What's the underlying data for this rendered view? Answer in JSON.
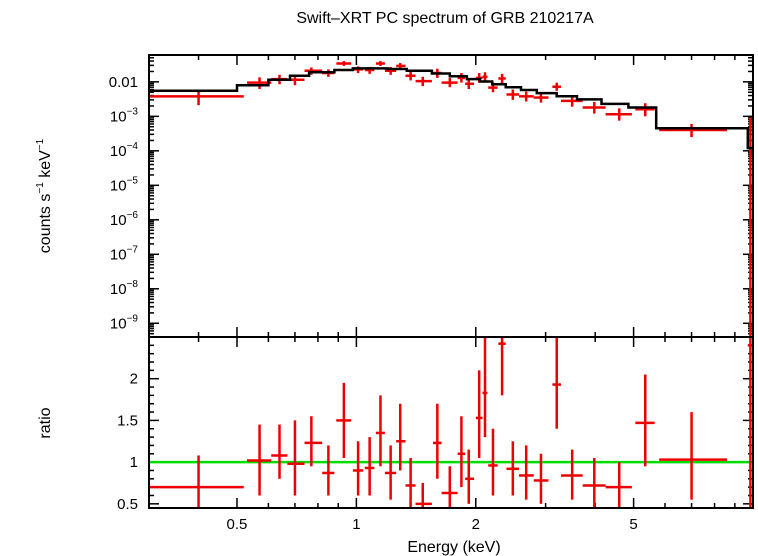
{
  "chart_data": {
    "type": "scatter",
    "title": "Swift–XRT PC spectrum of GRB 210217A",
    "xlabel": "Energy (keV)",
    "x_scale": "log",
    "xlim": [
      0.3,
      10
    ],
    "x_ticks": [
      {
        "value": 0.5,
        "label": "0.5"
      },
      {
        "value": 1,
        "label": "1"
      },
      {
        "value": 2,
        "label": "2"
      },
      {
        "value": 5,
        "label": "5"
      }
    ],
    "grid": false,
    "legend": "none",
    "colors": {
      "data": "#ee0000",
      "model": "#000000",
      "unity": "#00dd00"
    },
    "panels": {
      "spectrum": {
        "ylabel_main": "counts s",
        "ylabel_sup1": "−1",
        "ylabel_mid": " keV",
        "ylabel_sup2": "−1",
        "y_scale": "log",
        "ylim": [
          4e-10,
          0.06
        ],
        "y_ticks": [
          {
            "value": 0.01,
            "label": "0.01"
          },
          {
            "value": 0.001,
            "base": "10",
            "exp": "−3"
          },
          {
            "value": 0.0001,
            "base": "10",
            "exp": "−4"
          },
          {
            "value": 1e-05,
            "base": "10",
            "exp": "−5"
          },
          {
            "value": 1e-06,
            "base": "10",
            "exp": "−6"
          },
          {
            "value": 1e-07,
            "base": "10",
            "exp": "−7"
          },
          {
            "value": 1e-08,
            "base": "10",
            "exp": "−8"
          },
          {
            "value": 1e-09,
            "base": "10",
            "exp": "−9"
          }
        ],
        "data": [
          {
            "x": 0.4,
            "xlo": 0.3,
            "xhi": 0.52,
            "y": 0.0038,
            "ylo": 0.0021,
            "yhi": 0.0055
          },
          {
            "x": 0.57,
            "xlo": 0.53,
            "xhi": 0.61,
            "y": 0.0095,
            "ylo": 0.0062,
            "yhi": 0.0135
          },
          {
            "x": 0.64,
            "xlo": 0.61,
            "xhi": 0.67,
            "y": 0.012,
            "ylo": 0.0085,
            "yhi": 0.016
          },
          {
            "x": 0.7,
            "xlo": 0.67,
            "xhi": 0.74,
            "y": 0.0115,
            "ylo": 0.008,
            "yhi": 0.0155
          },
          {
            "x": 0.77,
            "xlo": 0.74,
            "xhi": 0.82,
            "y": 0.021,
            "ylo": 0.016,
            "yhi": 0.026
          },
          {
            "x": 0.85,
            "xlo": 0.82,
            "xhi": 0.88,
            "y": 0.018,
            "ylo": 0.014,
            "yhi": 0.023
          },
          {
            "x": 0.93,
            "xlo": 0.89,
            "xhi": 0.97,
            "y": 0.034,
            "ylo": 0.029,
            "yhi": 0.04
          },
          {
            "x": 1.01,
            "xlo": 0.98,
            "xhi": 1.04,
            "y": 0.023,
            "ylo": 0.018,
            "yhi": 0.028
          },
          {
            "x": 1.08,
            "xlo": 1.05,
            "xhi": 1.11,
            "y": 0.022,
            "ylo": 0.017,
            "yhi": 0.027
          },
          {
            "x": 1.15,
            "xlo": 1.12,
            "xhi": 1.18,
            "y": 0.034,
            "ylo": 0.029,
            "yhi": 0.04
          },
          {
            "x": 1.22,
            "xlo": 1.18,
            "xhi": 1.26,
            "y": 0.021,
            "ylo": 0.016,
            "yhi": 0.027
          },
          {
            "x": 1.29,
            "xlo": 1.26,
            "xhi": 1.33,
            "y": 0.029,
            "ylo": 0.024,
            "yhi": 0.035
          },
          {
            "x": 1.37,
            "xlo": 1.33,
            "xhi": 1.41,
            "y": 0.015,
            "ylo": 0.011,
            "yhi": 0.02
          },
          {
            "x": 1.47,
            "xlo": 1.41,
            "xhi": 1.55,
            "y": 0.0105,
            "ylo": 0.0075,
            "yhi": 0.014
          },
          {
            "x": 1.6,
            "xlo": 1.56,
            "xhi": 1.64,
            "y": 0.018,
            "ylo": 0.013,
            "yhi": 0.024
          },
          {
            "x": 1.72,
            "xlo": 1.64,
            "xhi": 1.8,
            "y": 0.0095,
            "ylo": 0.007,
            "yhi": 0.013
          },
          {
            "x": 1.84,
            "xlo": 1.8,
            "xhi": 1.88,
            "y": 0.013,
            "ylo": 0.0095,
            "yhi": 0.018
          },
          {
            "x": 1.92,
            "xlo": 1.88,
            "xhi": 1.98,
            "y": 0.0088,
            "ylo": 0.0062,
            "yhi": 0.012
          },
          {
            "x": 2.04,
            "xlo": 2.0,
            "xhi": 2.08,
            "y": 0.013,
            "ylo": 0.0095,
            "yhi": 0.018
          },
          {
            "x": 2.11,
            "xlo": 2.08,
            "xhi": 2.14,
            "y": 0.014,
            "ylo": 0.01,
            "yhi": 0.019
          },
          {
            "x": 2.21,
            "xlo": 2.15,
            "xhi": 2.27,
            "y": 0.0068,
            "ylo": 0.005,
            "yhi": 0.0095
          },
          {
            "x": 2.33,
            "xlo": 2.28,
            "xhi": 2.38,
            "y": 0.0125,
            "ylo": 0.009,
            "yhi": 0.017
          },
          {
            "x": 2.48,
            "xlo": 2.39,
            "xhi": 2.57,
            "y": 0.0043,
            "ylo": 0.003,
            "yhi": 0.006
          },
          {
            "x": 2.68,
            "xlo": 2.57,
            "xhi": 2.8,
            "y": 0.0038,
            "ylo": 0.0027,
            "yhi": 0.0052
          },
          {
            "x": 2.92,
            "xlo": 2.8,
            "xhi": 3.05,
            "y": 0.0035,
            "ylo": 0.0025,
            "yhi": 0.0048
          },
          {
            "x": 3.2,
            "xlo": 3.12,
            "xhi": 3.28,
            "y": 0.0072,
            "ylo": 0.0055,
            "yhi": 0.0095
          },
          {
            "x": 3.5,
            "xlo": 3.28,
            "xhi": 3.72,
            "y": 0.0028,
            "ylo": 0.0019,
            "yhi": 0.0039
          },
          {
            "x": 3.98,
            "xlo": 3.72,
            "xhi": 4.25,
            "y": 0.0018,
            "ylo": 0.0012,
            "yhi": 0.0026
          },
          {
            "x": 4.6,
            "xlo": 4.25,
            "xhi": 4.95,
            "y": 0.00115,
            "ylo": 0.00075,
            "yhi": 0.0017
          },
          {
            "x": 5.35,
            "xlo": 5.05,
            "xhi": 5.65,
            "y": 0.0016,
            "ylo": 0.001,
            "yhi": 0.0024
          },
          {
            "x": 7.0,
            "xlo": 5.8,
            "xhi": 8.6,
            "y": 0.0004,
            "ylo": 0.00025,
            "yhi": 0.0006
          },
          {
            "x": 9.85,
            "xlo": 9.7,
            "xhi": 10.0,
            "y": 0.0004,
            "ylo": 4e-10,
            "yhi": 0.0009
          }
        ],
        "model": [
          [
            0.3,
            0.0055
          ],
          [
            0.5,
            0.0055
          ],
          [
            0.5,
            0.008
          ],
          [
            0.6,
            0.008
          ],
          [
            0.6,
            0.0115
          ],
          [
            0.68,
            0.0115
          ],
          [
            0.68,
            0.015
          ],
          [
            0.76,
            0.015
          ],
          [
            0.76,
            0.019
          ],
          [
            0.88,
            0.019
          ],
          [
            0.88,
            0.022
          ],
          [
            0.98,
            0.022
          ],
          [
            0.98,
            0.0245
          ],
          [
            1.2,
            0.0245
          ],
          [
            1.2,
            0.0235
          ],
          [
            1.34,
            0.0235
          ],
          [
            1.34,
            0.021
          ],
          [
            1.55,
            0.021
          ],
          [
            1.55,
            0.0175
          ],
          [
            1.72,
            0.0175
          ],
          [
            1.72,
            0.0145
          ],
          [
            1.9,
            0.0145
          ],
          [
            1.9,
            0.012
          ],
          [
            2.05,
            0.012
          ],
          [
            2.05,
            0.0102
          ],
          [
            2.2,
            0.0102
          ],
          [
            2.2,
            0.0085
          ],
          [
            2.38,
            0.0085
          ],
          [
            2.38,
            0.007
          ],
          [
            2.6,
            0.007
          ],
          [
            2.6,
            0.0058
          ],
          [
            2.85,
            0.0058
          ],
          [
            2.85,
            0.0047
          ],
          [
            3.2,
            0.0047
          ],
          [
            3.2,
            0.0038
          ],
          [
            3.6,
            0.0038
          ],
          [
            3.6,
            0.0031
          ],
          [
            4.15,
            0.0031
          ],
          [
            4.15,
            0.0023
          ],
          [
            4.85,
            0.0023
          ],
          [
            4.85,
            0.0018
          ],
          [
            5.7,
            0.0018
          ],
          [
            5.7,
            0.00045
          ],
          [
            9.7,
            0.00045
          ],
          [
            9.7,
            0.00012
          ],
          [
            10.0,
            0.00012
          ]
        ]
      },
      "ratio": {
        "ylabel": "ratio",
        "y_scale": "linear",
        "ylim": [
          0.45,
          2.5
        ],
        "y_ticks": [
          {
            "value": 0.5,
            "label": "0.5"
          },
          {
            "value": 1,
            "label": "1"
          },
          {
            "value": 1.5,
            "label": "1.5"
          },
          {
            "value": 2,
            "label": "2"
          }
        ],
        "unity_line": 1,
        "data": [
          {
            "x": 0.4,
            "xlo": 0.3,
            "xhi": 0.52,
            "y": 0.7,
            "ylo": 0.45,
            "yhi": 1.08
          },
          {
            "x": 0.57,
            "xlo": 0.53,
            "xhi": 0.61,
            "y": 1.02,
            "ylo": 0.6,
            "yhi": 1.45
          },
          {
            "x": 0.64,
            "xlo": 0.61,
            "xhi": 0.67,
            "y": 1.08,
            "ylo": 0.8,
            "yhi": 1.45
          },
          {
            "x": 0.7,
            "xlo": 0.67,
            "xhi": 0.74,
            "y": 0.98,
            "ylo": 0.6,
            "yhi": 1.5
          },
          {
            "x": 0.77,
            "xlo": 0.74,
            "xhi": 0.82,
            "y": 1.23,
            "ylo": 0.95,
            "yhi": 1.55
          },
          {
            "x": 0.85,
            "xlo": 0.82,
            "xhi": 0.88,
            "y": 0.87,
            "ylo": 0.6,
            "yhi": 1.2
          },
          {
            "x": 0.93,
            "xlo": 0.89,
            "xhi": 0.97,
            "y": 1.5,
            "ylo": 1.05,
            "yhi": 1.95
          },
          {
            "x": 1.01,
            "xlo": 0.98,
            "xhi": 1.04,
            "y": 0.9,
            "ylo": 0.6,
            "yhi": 1.25
          },
          {
            "x": 1.08,
            "xlo": 1.05,
            "xhi": 1.11,
            "y": 0.93,
            "ylo": 0.6,
            "yhi": 1.3
          },
          {
            "x": 1.15,
            "xlo": 1.12,
            "xhi": 1.18,
            "y": 1.35,
            "ylo": 0.95,
            "yhi": 1.8
          },
          {
            "x": 1.22,
            "xlo": 1.18,
            "xhi": 1.26,
            "y": 0.87,
            "ylo": 0.55,
            "yhi": 1.2
          },
          {
            "x": 1.29,
            "xlo": 1.26,
            "xhi": 1.33,
            "y": 1.25,
            "ylo": 0.9,
            "yhi": 1.7
          },
          {
            "x": 1.37,
            "xlo": 1.33,
            "xhi": 1.41,
            "y": 0.72,
            "ylo": 0.45,
            "yhi": 1.05
          },
          {
            "x": 1.47,
            "xlo": 1.41,
            "xhi": 1.55,
            "y": 0.5,
            "ylo": 0.45,
            "yhi": 0.75
          },
          {
            "x": 1.6,
            "xlo": 1.56,
            "xhi": 1.64,
            "y": 1.23,
            "ylo": 0.8,
            "yhi": 1.7
          },
          {
            "x": 1.72,
            "xlo": 1.64,
            "xhi": 1.8,
            "y": 0.63,
            "ylo": 0.45,
            "yhi": 0.95
          },
          {
            "x": 1.84,
            "xlo": 1.8,
            "xhi": 1.88,
            "y": 1.1,
            "ylo": 0.7,
            "yhi": 1.55
          },
          {
            "x": 1.92,
            "xlo": 1.88,
            "xhi": 1.98,
            "y": 0.8,
            "ylo": 0.5,
            "yhi": 1.15
          },
          {
            "x": 2.04,
            "xlo": 2.0,
            "xhi": 2.08,
            "y": 1.53,
            "ylo": 1.05,
            "yhi": 2.1
          },
          {
            "x": 2.11,
            "xlo": 2.08,
            "xhi": 2.14,
            "y": 1.83,
            "ylo": 1.3,
            "yhi": 2.5
          },
          {
            "x": 2.21,
            "xlo": 2.15,
            "xhi": 2.27,
            "y": 0.96,
            "ylo": 0.6,
            "yhi": 1.4
          },
          {
            "x": 2.33,
            "xlo": 2.28,
            "xhi": 2.38,
            "y": 2.42,
            "ylo": 1.8,
            "yhi": 2.5
          },
          {
            "x": 2.48,
            "xlo": 2.39,
            "xhi": 2.57,
            "y": 0.92,
            "ylo": 0.6,
            "yhi": 1.25
          },
          {
            "x": 2.68,
            "xlo": 2.57,
            "xhi": 2.8,
            "y": 0.84,
            "ylo": 0.55,
            "yhi": 1.2
          },
          {
            "x": 2.92,
            "xlo": 2.8,
            "xhi": 3.05,
            "y": 0.78,
            "ylo": 0.5,
            "yhi": 1.1
          },
          {
            "x": 3.2,
            "xlo": 3.12,
            "xhi": 3.28,
            "y": 1.93,
            "ylo": 1.4,
            "yhi": 2.5
          },
          {
            "x": 3.5,
            "xlo": 3.28,
            "xhi": 3.72,
            "y": 0.84,
            "ylo": 0.55,
            "yhi": 1.15
          },
          {
            "x": 3.98,
            "xlo": 3.72,
            "xhi": 4.25,
            "y": 0.72,
            "ylo": 0.45,
            "yhi": 1.05
          },
          {
            "x": 4.6,
            "xlo": 4.25,
            "xhi": 4.95,
            "y": 0.7,
            "ylo": 0.45,
            "yhi": 1.0
          },
          {
            "x": 5.35,
            "xlo": 5.05,
            "xhi": 5.65,
            "y": 1.47,
            "ylo": 0.95,
            "yhi": 2.05
          },
          {
            "x": 7.0,
            "xlo": 5.8,
            "xhi": 8.6,
            "y": 1.03,
            "ylo": 0.55,
            "yhi": 1.6
          },
          {
            "x": 9.85,
            "xlo": 9.7,
            "xhi": 10.0,
            "y": 2.4,
            "ylo": 0.45,
            "yhi": 2.5
          }
        ]
      }
    }
  }
}
